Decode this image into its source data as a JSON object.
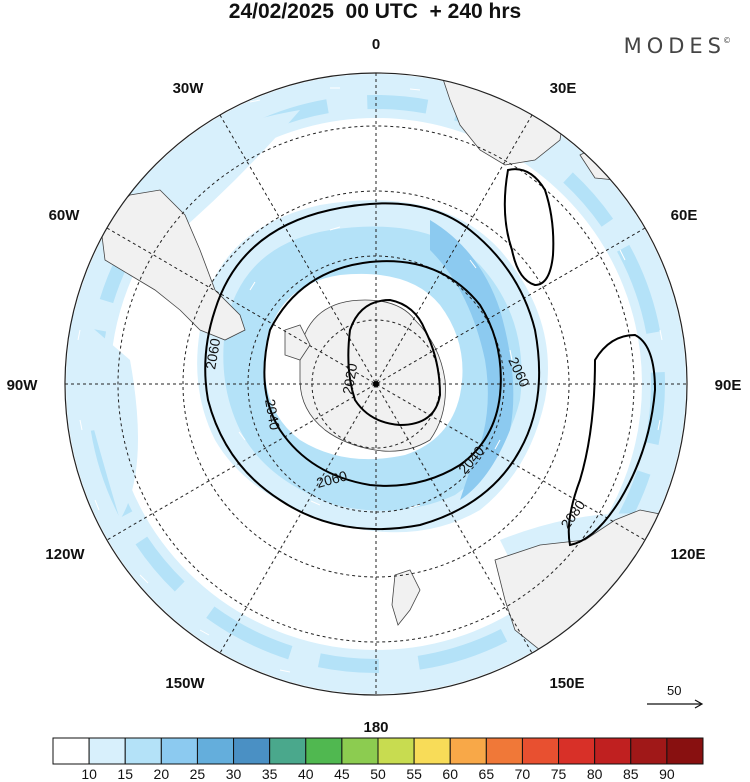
{
  "title": "24/02/2025  00 UTC  + 240 hrs",
  "brand": "MODES",
  "brand_mark": "©",
  "longitude_labels": {
    "lon_0": "0",
    "lon_30e": "30E",
    "lon_60e": "60E",
    "lon_90e": "90E",
    "lon_120e": "120E",
    "lon_150e": "150E",
    "lon_180": "180",
    "lon_150w": "150W",
    "lon_120w": "120W",
    "lon_90w": "90W",
    "lon_60w": "60W",
    "lon_30w": "30W"
  },
  "contours": {
    "c2020": "2020",
    "c2040a": "2040",
    "c2040b": "2040",
    "c2060a": "2060",
    "c2060b": "2060",
    "c2060c": "2060",
    "c2080": "2080"
  },
  "vector_reference": "50",
  "colorbar": {
    "labels": [
      "10",
      "15",
      "20",
      "25",
      "30",
      "35",
      "40",
      "45",
      "50",
      "55",
      "60",
      "65",
      "70",
      "75",
      "80",
      "85",
      "90"
    ],
    "colors": [
      "#ffffff",
      "#d8f0fc",
      "#b4e2f8",
      "#8ccaf0",
      "#64aedc",
      "#4a90c4",
      "#4aa88c",
      "#50b850",
      "#8ccc50",
      "#c8dc50",
      "#f8dc58",
      "#f8a848",
      "#f07838",
      "#e85030",
      "#d83028",
      "#c02020",
      "#a01818",
      "#881010"
    ]
  }
}
